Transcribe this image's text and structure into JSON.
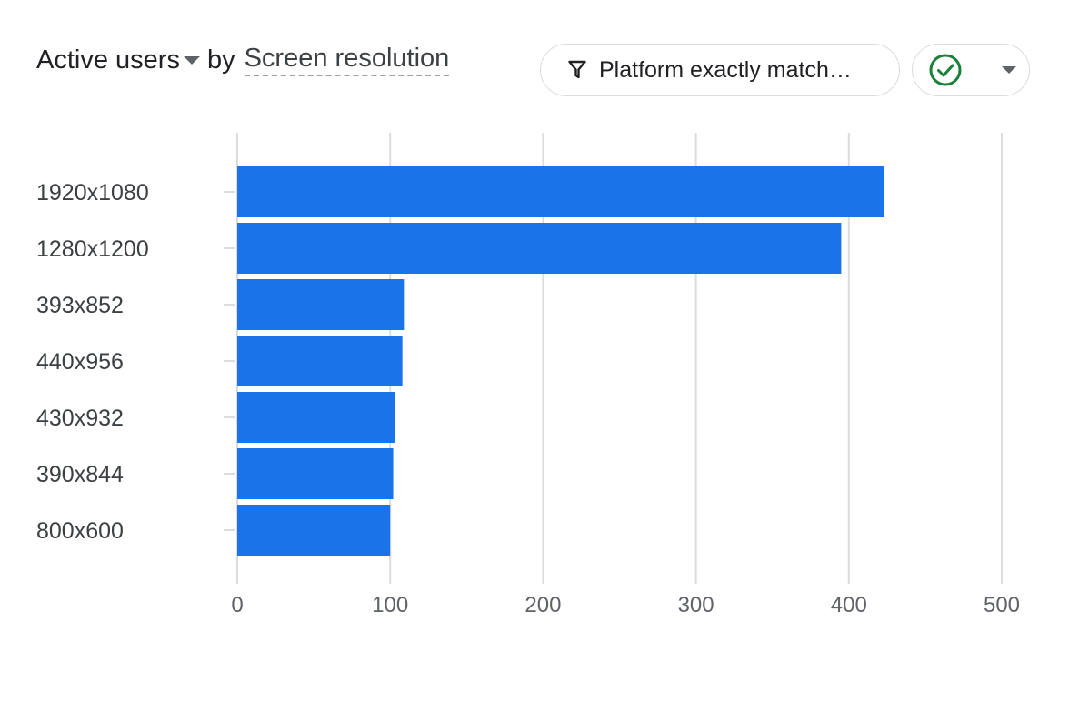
{
  "header": {
    "metric": "Active users",
    "by": "by",
    "dimension": "Screen resolution"
  },
  "filter": {
    "label": "Platform exactly match…",
    "icon": "filter-icon"
  },
  "status": {
    "icon": "check-circle-icon",
    "color": "#188038"
  },
  "chart_data": {
    "type": "bar",
    "orientation": "horizontal",
    "categories": [
      "1920x1080",
      "1280x1200",
      "393x852",
      "440x956",
      "430x932",
      "390x844",
      "800x600"
    ],
    "values": [
      423,
      395,
      109,
      108,
      103,
      102,
      100
    ],
    "xlim": [
      0,
      500
    ],
    "xticks": [
      0,
      100,
      200,
      300,
      400,
      500
    ],
    "grid": true,
    "bar_color": "#1a73e8"
  }
}
